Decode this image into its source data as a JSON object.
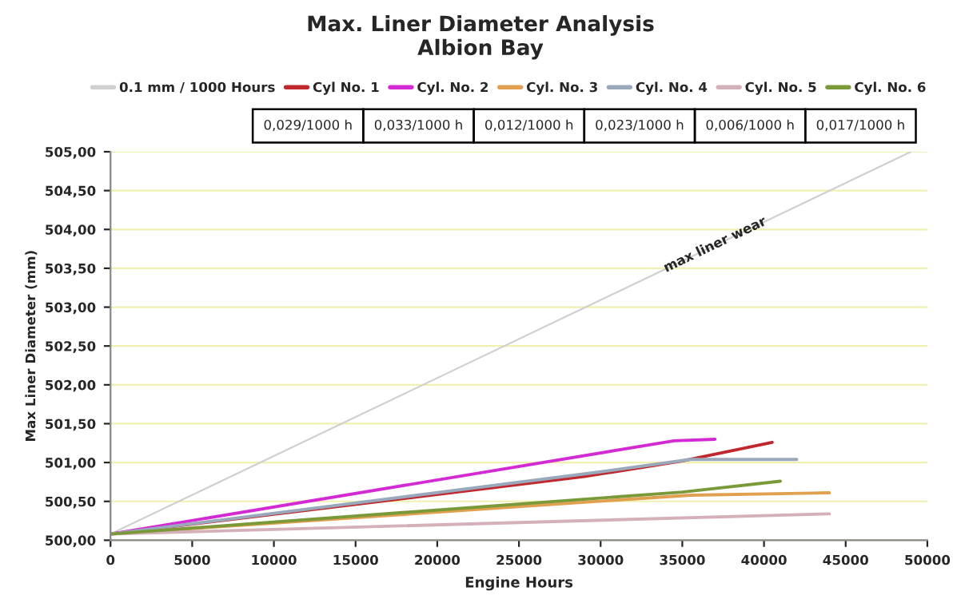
{
  "chart_data": {
    "type": "line",
    "title": "Max. Liner Diameter Analysis\nAlbion Bay",
    "xlabel": "Engine Hours",
    "ylabel": "Max Liner Diameter (mm)",
    "xlim": [
      0,
      50000
    ],
    "xticks": [
      0,
      5000,
      10000,
      15000,
      20000,
      25000,
      30000,
      35000,
      40000,
      45000,
      50000
    ],
    "ylim": [
      500,
      505
    ],
    "yticks": [
      {
        "value": 500,
        "label": "500,00"
      },
      {
        "value": 500.5,
        "label": "500,50"
      },
      {
        "value": 501,
        "label": "501,00"
      },
      {
        "value": 501.5,
        "label": "501,50"
      },
      {
        "value": 502,
        "label": "502,00"
      },
      {
        "value": 502.5,
        "label": "502,50"
      },
      {
        "value": 503,
        "label": "503,00"
      },
      {
        "value": 503.5,
        "label": "503,50"
      },
      {
        "value": 504,
        "label": "504,00"
      },
      {
        "value": 504.5,
        "label": "504,50"
      },
      {
        "value": 505,
        "label": "505,00"
      }
    ],
    "grid": "y",
    "legend": "top",
    "marker": "none",
    "line_style": "solid",
    "series": [
      {
        "name": "0.1 mm / 1000 Hours",
        "color": "#d0d0d0",
        "x": [
          0,
          49000
        ],
        "values": [
          500.08,
          505
        ]
      },
      {
        "name": "Cyl No. 1",
        "color": "#c0282d",
        "x": [
          0,
          29000,
          35000,
          40500
        ],
        "values": [
          500.08,
          500.82,
          501.02,
          501.26
        ]
      },
      {
        "name": "Cyl. No. 2",
        "color": "#d42ad4",
        "x": [
          0,
          34500,
          37000
        ],
        "values": [
          500.08,
          501.28,
          501.3
        ]
      },
      {
        "name": "Cyl. No. 3",
        "color": "#e0a050",
        "x": [
          0,
          35500,
          44000
        ],
        "values": [
          500.08,
          500.58,
          500.61
        ]
      },
      {
        "name": "Cyl. No. 4",
        "color": "#9aa8bc",
        "x": [
          0,
          30000,
          35500,
          42000
        ],
        "values": [
          500.08,
          500.88,
          501.04,
          501.04
        ]
      },
      {
        "name": "Cyl. No. 5",
        "color": "#d4b0b8",
        "x": [
          0,
          44000
        ],
        "values": [
          500.08,
          500.34
        ]
      },
      {
        "name": "Cyl. No. 6",
        "color": "#7a9a3a",
        "x": [
          0,
          35000,
          41000
        ],
        "values": [
          500.08,
          500.62,
          500.76
        ]
      }
    ],
    "annotations": [
      "0,029/1000 h",
      "0,033/1000 h",
      "0,012/1000 h",
      "0,023/1000 h",
      "0,006/1000 h",
      "0,017/1000 h",
      {
        "text": "max liner wear",
        "x": 37000,
        "y": 503.8
      }
    ]
  }
}
